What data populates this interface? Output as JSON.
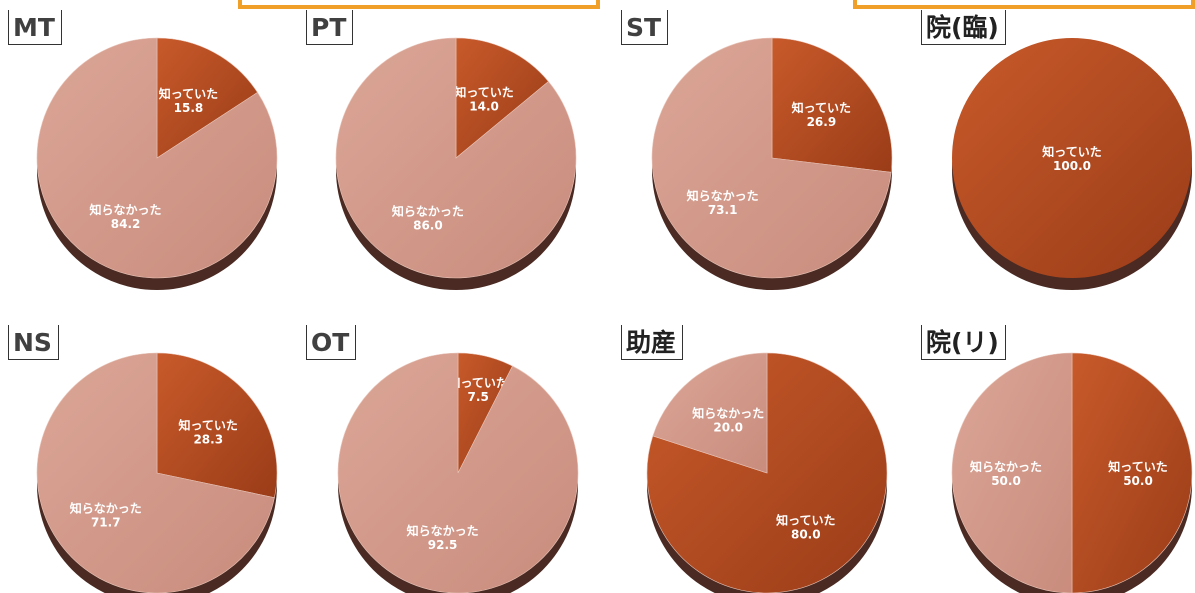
{
  "colors": {
    "knew": "#a8441c",
    "knew_light": "#c25426",
    "not_knew": "#cf9586",
    "not_knew_light": "#d9a293",
    "bracket": "#f0a028"
  },
  "chart_data": [
    {
      "type": "pie",
      "title": "MT",
      "categories": [
        "知っていた",
        "知らなかった"
      ],
      "values": [
        15.8,
        84.2
      ]
    },
    {
      "type": "pie",
      "title": "PT",
      "categories": [
        "知っていた",
        "知らなかった"
      ],
      "values": [
        14.0,
        86.0
      ]
    },
    {
      "type": "pie",
      "title": "ST",
      "categories": [
        "知っていた",
        "知らなかった"
      ],
      "values": [
        26.9,
        73.1
      ]
    },
    {
      "type": "pie",
      "title": "院(臨)",
      "categories": [
        "知っていた"
      ],
      "values": [
        100.0
      ]
    },
    {
      "type": "pie",
      "title": "NS",
      "categories": [
        "知っていた",
        "知らなかった"
      ],
      "values": [
        28.3,
        71.7
      ]
    },
    {
      "type": "pie",
      "title": "OT",
      "categories": [
        "知っていた",
        "知らなかった"
      ],
      "values": [
        7.5,
        92.5
      ]
    },
    {
      "type": "pie",
      "title": "助産",
      "categories": [
        "知っていた",
        "知らなかった"
      ],
      "values": [
        80.0,
        20.0
      ]
    },
    {
      "type": "pie",
      "title": "院(リ)",
      "categories": [
        "知っていた",
        "知らなかった"
      ],
      "values": [
        50.0,
        50.0
      ]
    }
  ]
}
